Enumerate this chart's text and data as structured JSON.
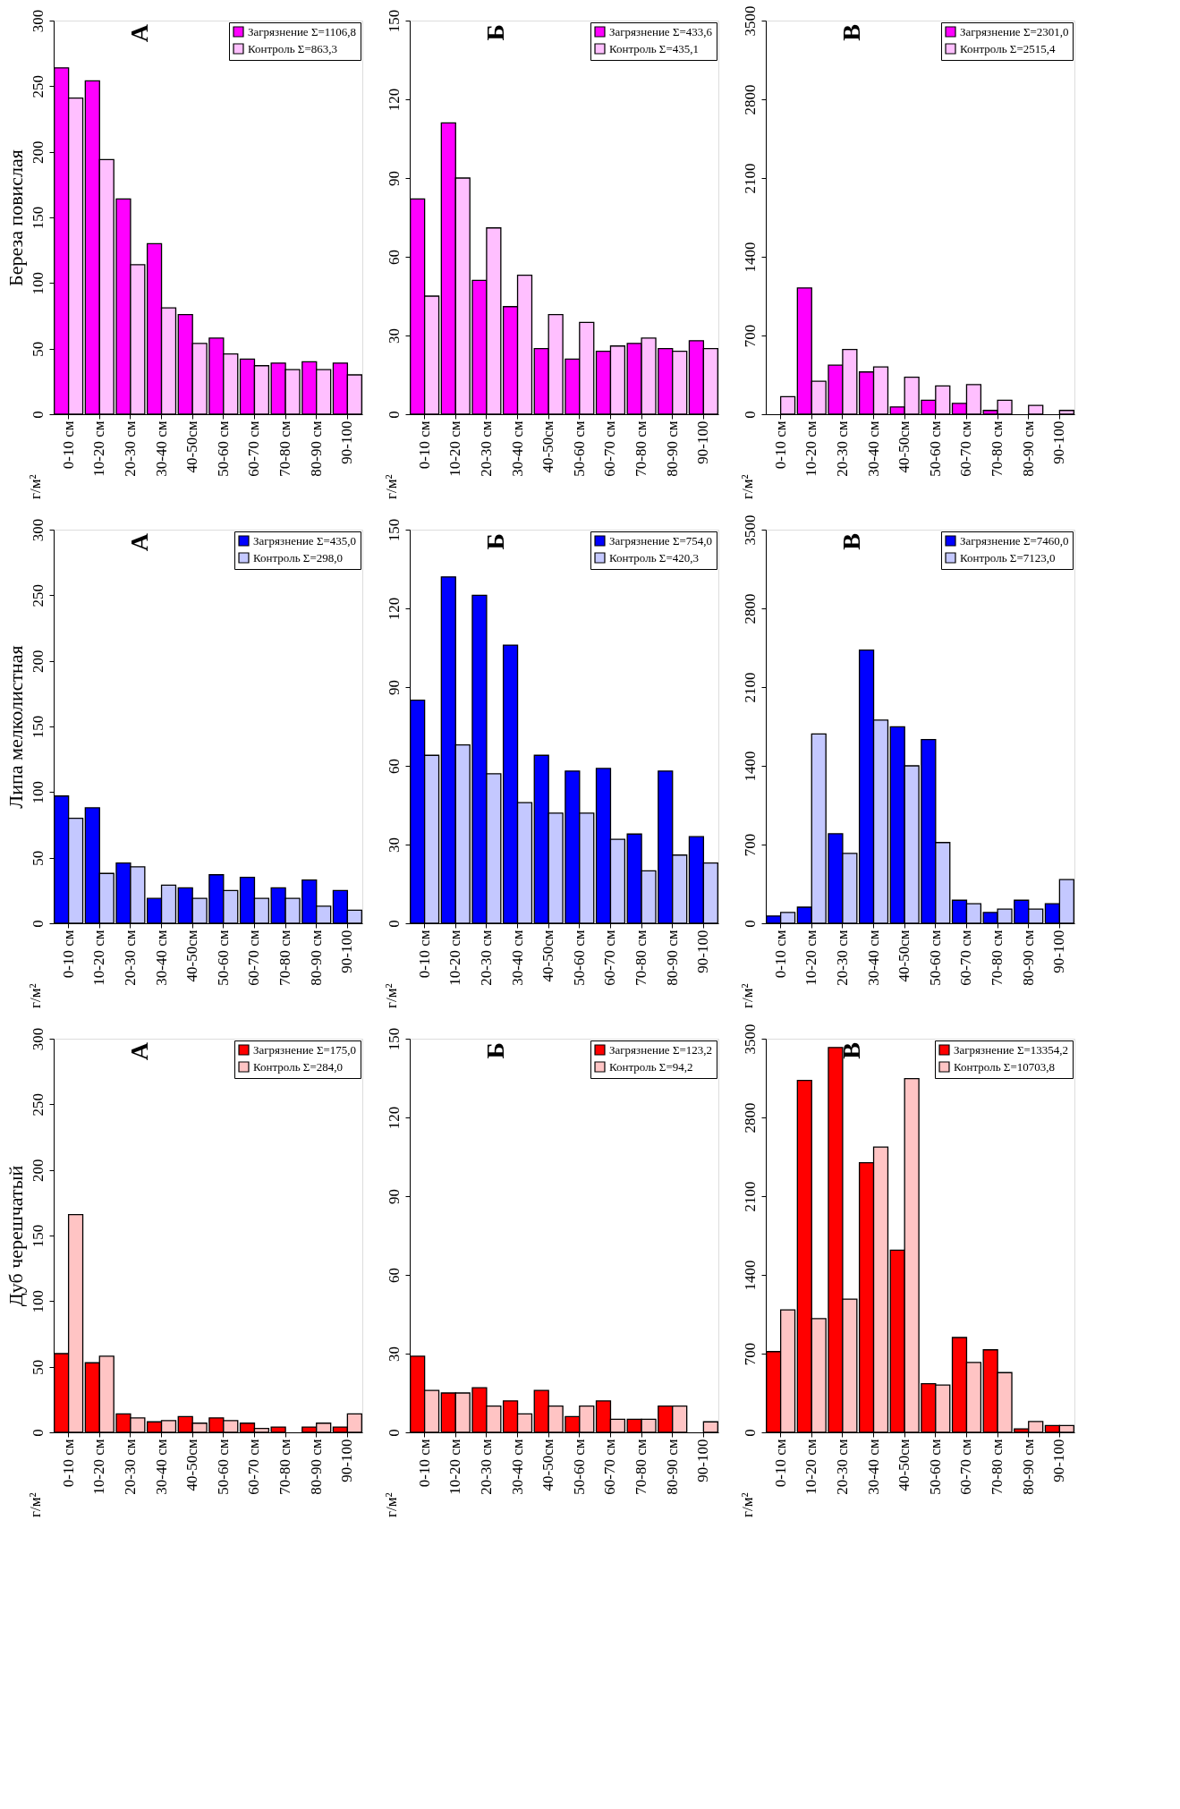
{
  "chart_data": [
    {
      "type": "bar",
      "ylabel": "Береза повислая",
      "annotations": [
        "А",
        "г/м²"
      ],
      "legend": "top right",
      "grid": false,
      "ylim": [
        0,
        300
      ],
      "yticks": [
        0,
        50,
        100,
        150,
        200,
        250,
        300
      ],
      "categories": [
        "0-10 см",
        "10-20 см",
        "20-30 см",
        "30-40 см",
        "40-50см",
        "50-60 см",
        "60-70 см",
        "70-80 см",
        "80-90 см",
        "90-100"
      ],
      "series": [
        {
          "name": "Загрязнение Σ=1106,8",
          "color": "#ff00ff",
          "values": [
            264,
            254,
            164,
            130,
            76,
            58,
            42,
            39,
            40,
            39
          ]
        },
        {
          "name": "Контроль Σ=863,3",
          "color": "#ffbfff",
          "values": [
            241,
            194,
            114,
            81,
            54,
            46,
            37,
            34,
            34,
            30
          ]
        }
      ]
    },
    {
      "type": "bar",
      "annotations": [
        "Б",
        "г/м²"
      ],
      "legend": "top right",
      "grid": false,
      "ylim": [
        0,
        150
      ],
      "yticks": [
        0,
        30,
        60,
        90,
        120,
        150
      ],
      "categories": [
        "0-10 см",
        "10-20 см",
        "20-30 см",
        "30-40 см",
        "40-50см",
        "50-60 см",
        "60-70 см",
        "70-80 см",
        "80-90 см",
        "90-100"
      ],
      "series": [
        {
          "name": "Загрязнение Σ=433,6",
          "color": "#ff00ff",
          "values": [
            82,
            111,
            51,
            41,
            25,
            21,
            24,
            27,
            25,
            28
          ]
        },
        {
          "name": "Контроль Σ=435,1",
          "color": "#ffbfff",
          "values": [
            45,
            90,
            71,
            53,
            38,
            35,
            26,
            29,
            24,
            25
          ]
        }
      ]
    },
    {
      "type": "bar",
      "annotations": [
        "В",
        "г/м²"
      ],
      "legend": "top right",
      "grid": false,
      "ylim": [
        0,
        3500
      ],
      "yticks": [
        0,
        700,
        1400,
        2100,
        2800,
        3500
      ],
      "categories": [
        "0-10 см",
        "10-20 см",
        "20-30 см",
        "30-40 см",
        "40-50см",
        "50-60 см",
        "60-70 см",
        "70-80 см",
        "80-90 см",
        "90-100"
      ],
      "series": [
        {
          "name": "Загрязнение Σ=2301,0",
          "color": "#ff00ff",
          "values": [
            null,
            1123,
            436,
            376,
            65,
            124,
            96,
            34,
            null,
            null
          ]
        },
        {
          "name": "Контроль Σ=2515,4",
          "color": "#ffbfff",
          "values": [
            156,
            293,
            576,
            420,
            329,
            251,
            264,
            124,
            78,
            34
          ]
        }
      ]
    },
    {
      "type": "bar",
      "ylabel": "Липа мелколистная",
      "annotations": [
        "А",
        "г/м²"
      ],
      "legend": "top right",
      "grid": false,
      "ylim": [
        0,
        300
      ],
      "yticks": [
        0,
        50,
        100,
        150,
        200,
        250,
        300
      ],
      "categories": [
        "0-10 см",
        "10-20 см",
        "20-30 см",
        "30-40 см",
        "40-50см",
        "50-60 см",
        "60-70 см",
        "70-80 см",
        "80-90 см",
        "90-100"
      ],
      "series": [
        {
          "name": "Загрязнение Σ=435,0",
          "color": "#0000ff",
          "values": [
            97,
            88,
            46,
            19,
            27,
            37,
            35,
            27,
            33,
            25
          ]
        },
        {
          "name": "Контроль Σ=298,0",
          "color": "#c4c8ff",
          "values": [
            80,
            38,
            43,
            29,
            19,
            25,
            19,
            19,
            13,
            10
          ]
        }
      ]
    },
    {
      "type": "bar",
      "annotations": [
        "Б",
        "г/м²"
      ],
      "legend": "top right",
      "grid": false,
      "ylim": [
        0,
        150
      ],
      "yticks": [
        0,
        30,
        60,
        90,
        120,
        150
      ],
      "categories": [
        "0-10 см",
        "10-20 см",
        "20-30 см",
        "30-40 см",
        "40-50см",
        "50-60 см",
        "60-70 см",
        "70-80 см",
        "80-90 см",
        "90-100"
      ],
      "series": [
        {
          "name": "Загрязнение Σ=754,0",
          "color": "#0000ff",
          "values": [
            85,
            132,
            125,
            106,
            64,
            58,
            59,
            34,
            58,
            33
          ]
        },
        {
          "name": "Контроль Σ=420,3",
          "color": "#c4c8ff",
          "values": [
            64,
            68,
            57,
            46,
            42,
            42,
            32,
            20,
            26,
            23
          ]
        }
      ]
    },
    {
      "type": "bar",
      "annotations": [
        "В",
        "г/м²"
      ],
      "legend": "top right",
      "grid": false,
      "ylim": [
        0,
        3500
      ],
      "yticks": [
        0,
        700,
        1400,
        2100,
        2800,
        3500
      ],
      "categories": [
        "0-10 см",
        "10-20 см",
        "20-30 см",
        "30-40 см",
        "40-50см",
        "50-60 см",
        "60-70 см",
        "70-80 см",
        "80-90 см",
        "90-100"
      ],
      "series": [
        {
          "name": "Загрязнение Σ=7460,0",
          "color": "#0000ff",
          "values": [
            65,
            143,
            796,
            2429,
            1747,
            1633,
            205,
            96,
            205,
            174
          ]
        },
        {
          "name": "Контроль Σ=7123,0",
          "color": "#c4c8ff",
          "values": [
            96,
            1683,
            622,
            1807,
            1400,
            718,
            174,
            127,
            127,
            389
          ]
        }
      ]
    },
    {
      "type": "bar",
      "ylabel": "Дуб черешчатый",
      "annotations": [
        "А",
        "г/м²"
      ],
      "legend": "top right",
      "grid": false,
      "ylim": [
        0,
        300
      ],
      "yticks": [
        0,
        50,
        100,
        150,
        200,
        250,
        300
      ],
      "categories": [
        "0-10 см",
        "10-20 см",
        "20-30 см",
        "30-40 см",
        "40-50см",
        "50-60 см",
        "60-70 см",
        "70-80 см",
        "80-90 см",
        "90-100"
      ],
      "series": [
        {
          "name": "Загрязнение Σ=175,0",
          "color": "#ff0000",
          "values": [
            60,
            53,
            14,
            8,
            12,
            11,
            7,
            4,
            4,
            4
          ]
        },
        {
          "name": "Контроль Σ=284,0",
          "color": "#ffc4c4",
          "values": [
            166,
            58,
            11,
            9,
            7,
            9,
            3,
            null,
            7,
            14
          ]
        }
      ]
    },
    {
      "type": "bar",
      "annotations": [
        "Б",
        "г/м²"
      ],
      "legend": "top right",
      "grid": false,
      "ylim": [
        0,
        150
      ],
      "yticks": [
        0,
        30,
        60,
        90,
        120,
        150
      ],
      "categories": [
        "0-10 см",
        "10-20 см",
        "20-30 см",
        "30-40 см",
        "40-50см",
        "50-60 см",
        "60-70 см",
        "70-80 см",
        "80-90 см",
        "90-100"
      ],
      "series": [
        {
          "name": "Загрязнение Σ=123,2",
          "color": "#ff0000",
          "values": [
            29,
            15,
            17,
            12,
            16,
            6,
            12,
            5,
            10,
            null
          ]
        },
        {
          "name": "Контроль Σ=94,2",
          "color": "#ffc4c4",
          "values": [
            16,
            15,
            10,
            7,
            10,
            10,
            5,
            5,
            10,
            4
          ]
        }
      ]
    },
    {
      "type": "bar",
      "annotations": [
        "В",
        "г/м²"
      ],
      "legend": "top right",
      "grid": false,
      "ylim": [
        0,
        3500
      ],
      "yticks": [
        0,
        700,
        1400,
        2100,
        2800,
        3500
      ],
      "categories": [
        "0-10 см",
        "10-20 см",
        "20-30 см",
        "30-40 см",
        "40-50см",
        "50-60 см",
        "60-70 см",
        "70-80 см",
        "80-90 см",
        "90-100"
      ],
      "series": [
        {
          "name": "Загрязнение Σ=13354,2",
          "color": "#ff0000",
          "values": [
            718,
            3129,
            3422,
            2398,
            1620,
            433,
            843,
            734,
            31,
            60
          ]
        },
        {
          "name": "Контроль Σ=10703,8",
          "color": "#ffc4c4",
          "values": [
            1089,
            1011,
            1185,
            2536,
            3145,
            420,
            622,
            531,
            96,
            60
          ]
        }
      ]
    }
  ]
}
